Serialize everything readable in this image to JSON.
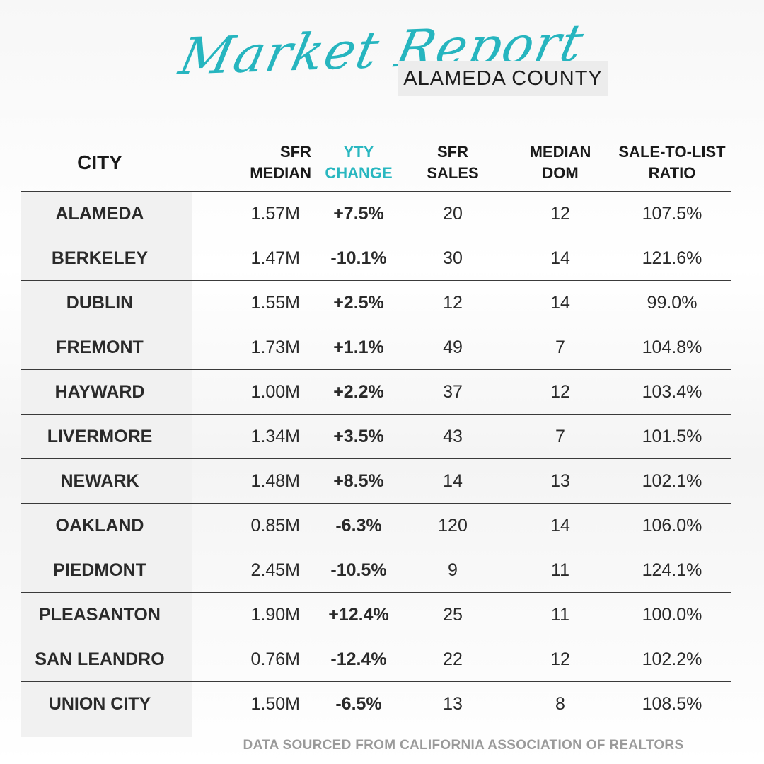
{
  "header": {
    "script_title": "Market Report",
    "subtitle": "ALAMEDA COUNTY"
  },
  "table": {
    "columns": {
      "city": "CITY",
      "sfr_median_1": "SFR",
      "sfr_median_2": "MEDIAN",
      "yty_1": "YTY",
      "yty_2": "CHANGE",
      "sales_1": "SFR",
      "sales_2": "SALES",
      "dom_1": "MEDIAN",
      "dom_2": "DOM",
      "ratio_1": "SALE-TO-LIST",
      "ratio_2": "RATIO"
    },
    "rows": [
      {
        "city": "ALAMEDA",
        "median": "1.57M",
        "yty": "+7.5%",
        "sales": "20",
        "dom": "12",
        "ratio": "107.5%"
      },
      {
        "city": "BERKELEY",
        "median": "1.47M",
        "yty": "-10.1%",
        "sales": "30",
        "dom": "14",
        "ratio": "121.6%"
      },
      {
        "city": "DUBLIN",
        "median": "1.55M",
        "yty": "+2.5%",
        "sales": "12",
        "dom": "14",
        "ratio": "99.0%"
      },
      {
        "city": "FREMONT",
        "median": "1.73M",
        "yty": "+1.1%",
        "sales": "49",
        "dom": "7",
        "ratio": "104.8%"
      },
      {
        "city": "HAYWARD",
        "median": "1.00M",
        "yty": "+2.2%",
        "sales": "37",
        "dom": "12",
        "ratio": "103.4%"
      },
      {
        "city": "LIVERMORE",
        "median": "1.34M",
        "yty": "+3.5%",
        "sales": "43",
        "dom": "7",
        "ratio": "101.5%"
      },
      {
        "city": "NEWARK",
        "median": "1.48M",
        "yty": "+8.5%",
        "sales": "14",
        "dom": "13",
        "ratio": "102.1%"
      },
      {
        "city": "OAKLAND",
        "median": "0.85M",
        "yty": "-6.3%",
        "sales": "120",
        "dom": "14",
        "ratio": "106.0%"
      },
      {
        "city": "PIEDMONT",
        "median": "2.45M",
        "yty": "-10.5%",
        "sales": "9",
        "dom": "11",
        "ratio": "124.1%"
      },
      {
        "city": "PLEASANTON",
        "median": "1.90M",
        "yty": "+12.4%",
        "sales": "25",
        "dom": "11",
        "ratio": "100.0%"
      },
      {
        "city": "SAN LEANDRO",
        "median": "0.76M",
        "yty": "-12.4%",
        "sales": "22",
        "dom": "12",
        "ratio": "102.2%"
      },
      {
        "city": "UNION CITY",
        "median": "1.50M",
        "yty": "-6.5%",
        "sales": "13",
        "dom": "8",
        "ratio": "108.5%"
      }
    ]
  },
  "footer": {
    "source": "DATA SOURCED FROM CALIFORNIA ASSOCIATION OF REALTORS"
  },
  "colors": {
    "accent_teal": "#27b4bd",
    "negative_red": "#b23a1e"
  }
}
